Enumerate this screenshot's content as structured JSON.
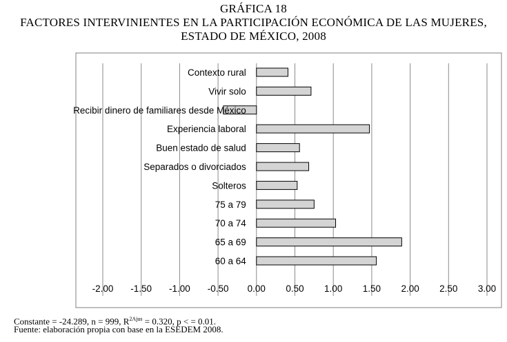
{
  "header": {
    "line1": "GRÁFICA 18",
    "line2": "FACTORES INTERVINIENTES EN LA PARTICIPACIÓN ECONÓMICA DE LAS MUJERES,",
    "line3": "ESTADO DE MÉXICO, 2008"
  },
  "chart_data": {
    "type": "bar",
    "orientation": "horizontal",
    "title": "FACTORES INTERVINIENTES EN LA PARTICIPACIÓN ECONÓMICA DE LAS MUJERES, ESTADO DE MÉXICO, 2008",
    "categories": [
      "Contexto rural",
      "Vivir solo",
      "Recibir dinero de familiares desde México",
      "Experiencia laboral",
      "Buen estado de salud",
      "Separados o divorciados",
      "Solteros",
      "75 a 79",
      "70 a 74",
      "65 a 69",
      "60 a 64"
    ],
    "values": [
      0.41,
      0.71,
      -0.43,
      1.47,
      0.56,
      0.68,
      0.53,
      0.75,
      1.03,
      1.89,
      1.56
    ],
    "xlim": [
      -2.0,
      3.0
    ],
    "xticks": [
      "-2.00",
      "-1.50",
      "-1.00",
      "-0.50",
      "0.00",
      "0.50",
      "1.00",
      "1.50",
      "2.00",
      "2.50",
      "3.00"
    ],
    "xlabel": "",
    "ylabel": "",
    "grid": "vertical",
    "bar_color": "#d4d4d4",
    "bar_edge": "#000000"
  },
  "notes": {
    "model_prefix": "Constante = -24.289, n = 999, R",
    "model_sup": "2Ajus",
    "model_suffix": " = 0.320, p < = 0.01.",
    "source": "Fuente: elaboración propia con base en la ESEDEM 2008."
  }
}
